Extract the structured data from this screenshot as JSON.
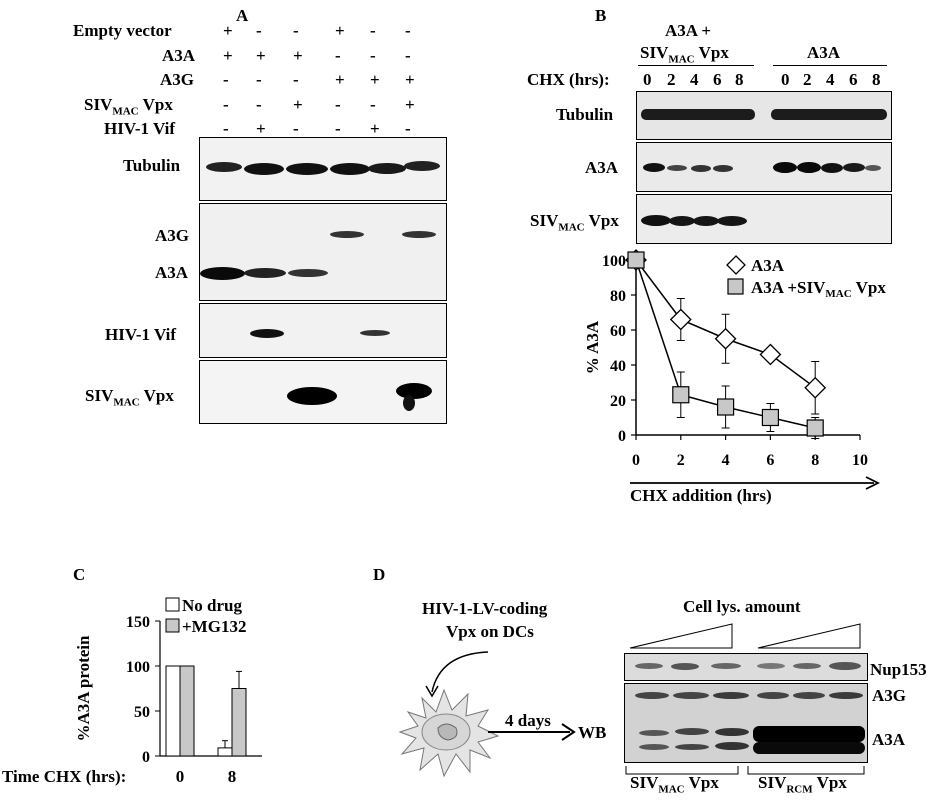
{
  "panels": {
    "A": {
      "letter": "A",
      "rows": [
        {
          "label": "Empty vector",
          "marks": [
            "+",
            "-",
            "-",
            "+",
            "-",
            "-"
          ]
        },
        {
          "label": "A3A",
          "marks": [
            "+",
            "+",
            "+",
            "-",
            "-",
            "-"
          ]
        },
        {
          "label": "A3G",
          "marks": [
            "-",
            "-",
            "-",
            "+",
            "+",
            "+"
          ]
        },
        {
          "label": "SIVMAC Vpx",
          "label_main": "SIV",
          "label_sub": "MAC",
          "label_tail": " Vpx",
          "marks": [
            "-",
            "-",
            "+",
            "-",
            "-",
            "+"
          ]
        },
        {
          "label": "HIV-1 Vif",
          "marks": [
            "-",
            "+",
            "-",
            "-",
            "+",
            "-"
          ]
        }
      ],
      "blots": [
        {
          "labels": [
            "Tubulin"
          ]
        },
        {
          "labels": [
            "A3G",
            "A3A"
          ]
        },
        {
          "labels": [
            "HIV-1 Vif"
          ]
        },
        {
          "labels": [
            "SIVMAC Vpx"
          ]
        }
      ],
      "blot_labels": {
        "tubulin": "Tubulin",
        "a3g": "A3G",
        "a3a": "A3A",
        "vif": "HIV-1 Vif",
        "vpx_main": "SIV",
        "vpx_sub": "MAC",
        "vpx_tail": " Vpx"
      }
    },
    "B": {
      "letter": "B",
      "group1_line1": "A3A +",
      "group1_main": "SIV",
      "group1_sub": "MAC",
      "group1_tail": " Vpx",
      "group2": "A3A",
      "chx_label": "CHX (hrs):",
      "timepoints": [
        "0",
        "2",
        "4",
        "6",
        "8",
        "0",
        "2",
        "4",
        "6",
        "8"
      ],
      "blot_labels": {
        "tubulin": "Tubulin",
        "a3a": "A3A",
        "vpx_main": "SIV",
        "vpx_sub": "MAC",
        "vpx_tail": " Vpx"
      }
    },
    "C": {
      "letter": "C"
    },
    "D": {
      "letter": "D",
      "lv_line1": "HIV-1-LV-coding",
      "lv_line2": "Vpx on DCs",
      "days": "4 days",
      "wb": "WB",
      "cell_lys": "Cell lys. amount",
      "labels": {
        "nup": "Nup153",
        "a3g": "A3G",
        "a3a": "A3A"
      },
      "group1_main": "SIV",
      "group1_sub": "MAC",
      "group1_tail": " Vpx",
      "group2_main": "SIV",
      "group2_sub": "RCM",
      "group2_tail": " Vpx"
    }
  },
  "chart_data": [
    {
      "type": "line",
      "panel": "B",
      "x": [
        0,
        2,
        4,
        6,
        8
      ],
      "xticks": [
        "0",
        "2",
        "4",
        "6",
        "8",
        "10"
      ],
      "yticks": [
        "0",
        "20",
        "40",
        "60",
        "80",
        "100"
      ],
      "xlim": [
        0,
        10
      ],
      "ylim": [
        0,
        100
      ],
      "xlabel": "CHX addition (hrs)",
      "ylabel": "% A3A",
      "series": [
        {
          "name": "A3A",
          "marker": "diamond",
          "values": [
            100,
            66,
            55,
            46,
            27
          ],
          "err": [
            0,
            12,
            14,
            0,
            15
          ]
        },
        {
          "name": "A3A +SIVMAC Vpx",
          "legend_main": "A3A +SIV",
          "legend_sub": "MAC",
          "legend_tail": " Vpx",
          "marker": "square",
          "values": [
            100,
            23,
            16,
            10,
            4
          ],
          "err": [
            0,
            13,
            12,
            8,
            6
          ]
        }
      ]
    },
    {
      "type": "bar",
      "panel": "C",
      "categories": [
        "0",
        "8"
      ],
      "xlabel": "Time CHX (hrs):",
      "ylabel": "%A3A protein",
      "yticks": [
        "0",
        "50",
        "100",
        "150"
      ],
      "ylim": [
        0,
        150
      ],
      "series": [
        {
          "name": "No drug",
          "values": [
            100,
            9
          ],
          "err": [
            0,
            8
          ],
          "color": "#ffffff"
        },
        {
          "name": "+MG132",
          "values": [
            100,
            75
          ],
          "err": [
            0,
            19
          ],
          "color": "#c8c8c8"
        }
      ]
    }
  ]
}
